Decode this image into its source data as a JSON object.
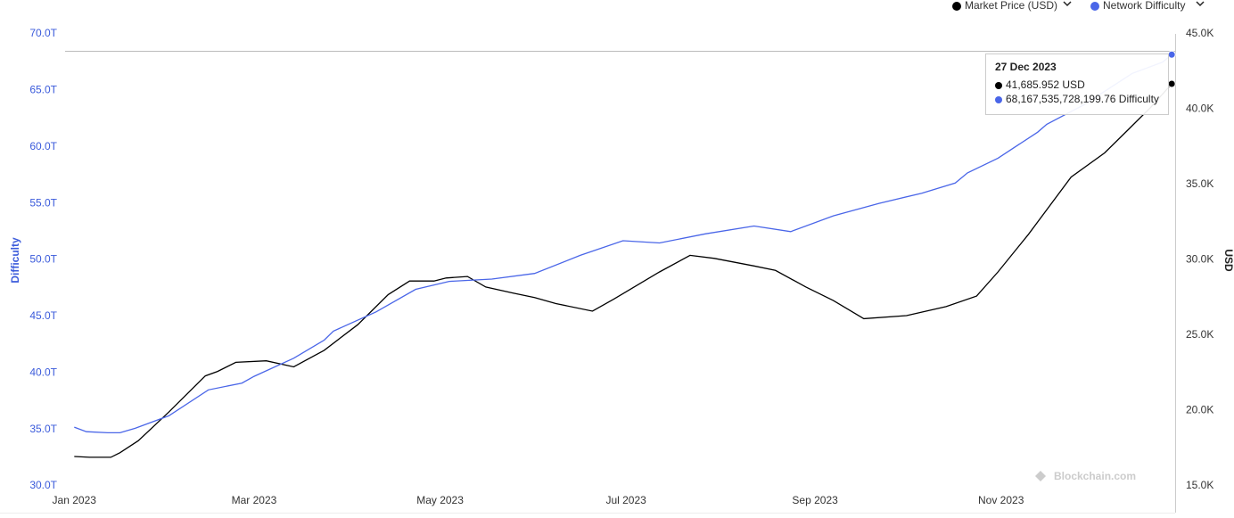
{
  "chart_data": {
    "type": "line",
    "legend_position": "top-right",
    "x_ticks_label": "month",
    "xlim": [
      -3,
      362
    ],
    "xticks": [
      {
        "value": 0,
        "label": "Jan 2023"
      },
      {
        "value": 59,
        "label": "Mar 2023"
      },
      {
        "value": 120,
        "label": "May 2023"
      },
      {
        "value": 181,
        "label": "Jul 2023"
      },
      {
        "value": 243,
        "label": "Sep 2023"
      },
      {
        "value": 304,
        "label": "Nov 2023"
      }
    ],
    "y_label": "Difficulty",
    "y2_label": "USD",
    "ylim": [
      30000000000000,
      70000000000000
    ],
    "yticks": [
      {
        "value": 30000000000000,
        "label": "30.0T"
      },
      {
        "value": 35000000000000,
        "label": "35.0T"
      },
      {
        "value": 40000000000000,
        "label": "40.0T"
      },
      {
        "value": 45000000000000,
        "label": "45.0T"
      },
      {
        "value": 50000000000000,
        "label": "50.0T"
      },
      {
        "value": 55000000000000,
        "label": "55.0T"
      },
      {
        "value": 60000000000000,
        "label": "60.0T"
      },
      {
        "value": 65000000000000,
        "label": "65.0T"
      },
      {
        "value": 70000000000000,
        "label": "70.0T"
      }
    ],
    "y2lim": [
      15000,
      45000
    ],
    "y2ticks": [
      {
        "value": 15000,
        "label": "15.0K"
      },
      {
        "value": 20000,
        "label": "20.0K"
      },
      {
        "value": 25000,
        "label": "25.0K"
      },
      {
        "value": 30000,
        "label": "30.0K"
      },
      {
        "value": 35000,
        "label": "35.0K"
      },
      {
        "value": 40000,
        "label": "40.0K"
      },
      {
        "value": 45000,
        "label": "45.0K"
      }
    ],
    "series": [
      {
        "name": "Market Price (USD)",
        "color": "#000000",
        "axis": "y2",
        "x": [
          0,
          5,
          12,
          15,
          21,
          31,
          43,
          47,
          53,
          63,
          72,
          82,
          93,
          103,
          110,
          118,
          122,
          129,
          135,
          144,
          151,
          158,
          170,
          177,
          192,
          202,
          210,
          223,
          230,
          240,
          249,
          259,
          273,
          286,
          296,
          303,
          313,
          327,
          338,
          346,
          353,
          360
        ],
        "values": [
          16950,
          16900,
          16900,
          17200,
          18000,
          19900,
          22300,
          22600,
          23200,
          23300,
          22900,
          24000,
          25700,
          27700,
          28600,
          28600,
          28800,
          28900,
          28200,
          27800,
          27500,
          27100,
          26600,
          27400,
          29200,
          30300,
          30100,
          29600,
          29300,
          28200,
          27300,
          26100,
          26300,
          26900,
          27600,
          29200,
          31700,
          35500,
          37100,
          38700,
          40100,
          41685.952
        ]
      },
      {
        "name": "Network Difficulty",
        "color": "#4a66e8",
        "x": [
          0,
          4,
          11,
          15,
          20,
          31,
          44,
          55,
          59,
          72,
          82,
          85,
          99,
          112,
          123,
          137,
          151,
          166,
          180,
          192,
          207,
          223,
          235,
          249,
          264,
          278,
          289,
          293,
          303,
          316,
          319,
          331,
          347,
          357,
          360
        ],
        "values": [
          35200000000000,
          34800000000000,
          34700000000000,
          34700000000000,
          35100000000000,
          36200000000000,
          38500000000000,
          39100000000000,
          39700000000000,
          41300000000000,
          42900000000000,
          43700000000000,
          45400000000000,
          47400000000000,
          48100000000000,
          48300000000000,
          48800000000000,
          50400000000000,
          51700000000000,
          51500000000000,
          52300000000000,
          53000000000000,
          52500000000000,
          53900000000000,
          55000000000000,
          55900000000000,
          56800000000000,
          57700000000000,
          59000000000000,
          61300000000000,
          62000000000000,
          63700000000000,
          66500000000000,
          67500000000000,
          68167535728199.76
        ]
      }
    ],
    "tooltip": {
      "date": "27 Dec 2023",
      "lines": [
        "41,685.952 USD",
        "68,167,535,728,199.76 Difficulty"
      ]
    },
    "watermark": "Blockchain.com"
  }
}
